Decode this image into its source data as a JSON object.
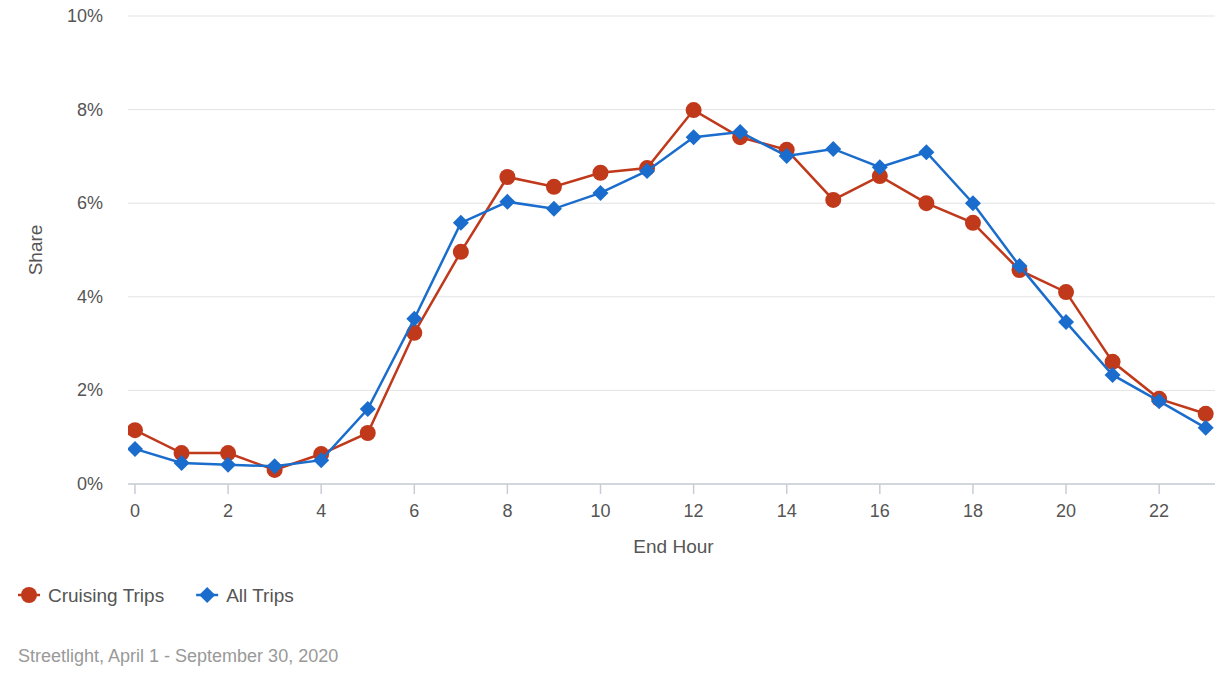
{
  "chart_data": {
    "type": "line",
    "x_label": "End Hour",
    "y_label": "Share",
    "source": "Streetlight, April 1 - September 30, 2020",
    "x": [
      0,
      1,
      2,
      3,
      4,
      5,
      6,
      7,
      8,
      9,
      10,
      11,
      12,
      13,
      14,
      15,
      16,
      17,
      18,
      19,
      20,
      21,
      22,
      23
    ],
    "series": [
      {
        "name": "Cruising Trips",
        "color": "#c0391b",
        "marker": "circle",
        "line_style": "solid",
        "values": [
          1.15,
          0.66,
          0.66,
          0.3,
          0.64,
          1.09,
          3.23,
          4.96,
          6.56,
          6.35,
          6.65,
          6.75,
          7.99,
          7.41,
          7.14,
          6.07,
          6.58,
          6.0,
          5.58,
          4.57,
          4.1,
          2.61,
          1.82,
          1.5
        ]
      },
      {
        "name": "All Trips",
        "color": "#1a6dcc",
        "marker": "diamond",
        "line_style": "solid",
        "values": [
          0.75,
          0.45,
          0.41,
          0.38,
          0.51,
          1.6,
          3.53,
          5.58,
          6.03,
          5.88,
          6.22,
          6.69,
          7.41,
          7.52,
          7.01,
          7.16,
          6.77,
          7.09,
          6.0,
          4.66,
          3.46,
          2.33,
          1.77,
          1.2
        ]
      }
    ],
    "xlim": [
      -0.15,
      23.2
    ],
    "xticks": [
      0,
      2,
      4,
      6,
      8,
      10,
      12,
      14,
      16,
      18,
      20,
      22
    ],
    "ylim": [
      0,
      10
    ],
    "yticks": [
      {
        "value": 0,
        "label": "0%"
      },
      {
        "value": 2,
        "label": "2%"
      },
      {
        "value": 4,
        "label": "4%"
      },
      {
        "value": 6,
        "label": "6%"
      },
      {
        "value": 8,
        "label": "8%"
      },
      {
        "value": 10,
        "label": "10%"
      }
    ],
    "grid": true,
    "legend": "bottom-left"
  }
}
